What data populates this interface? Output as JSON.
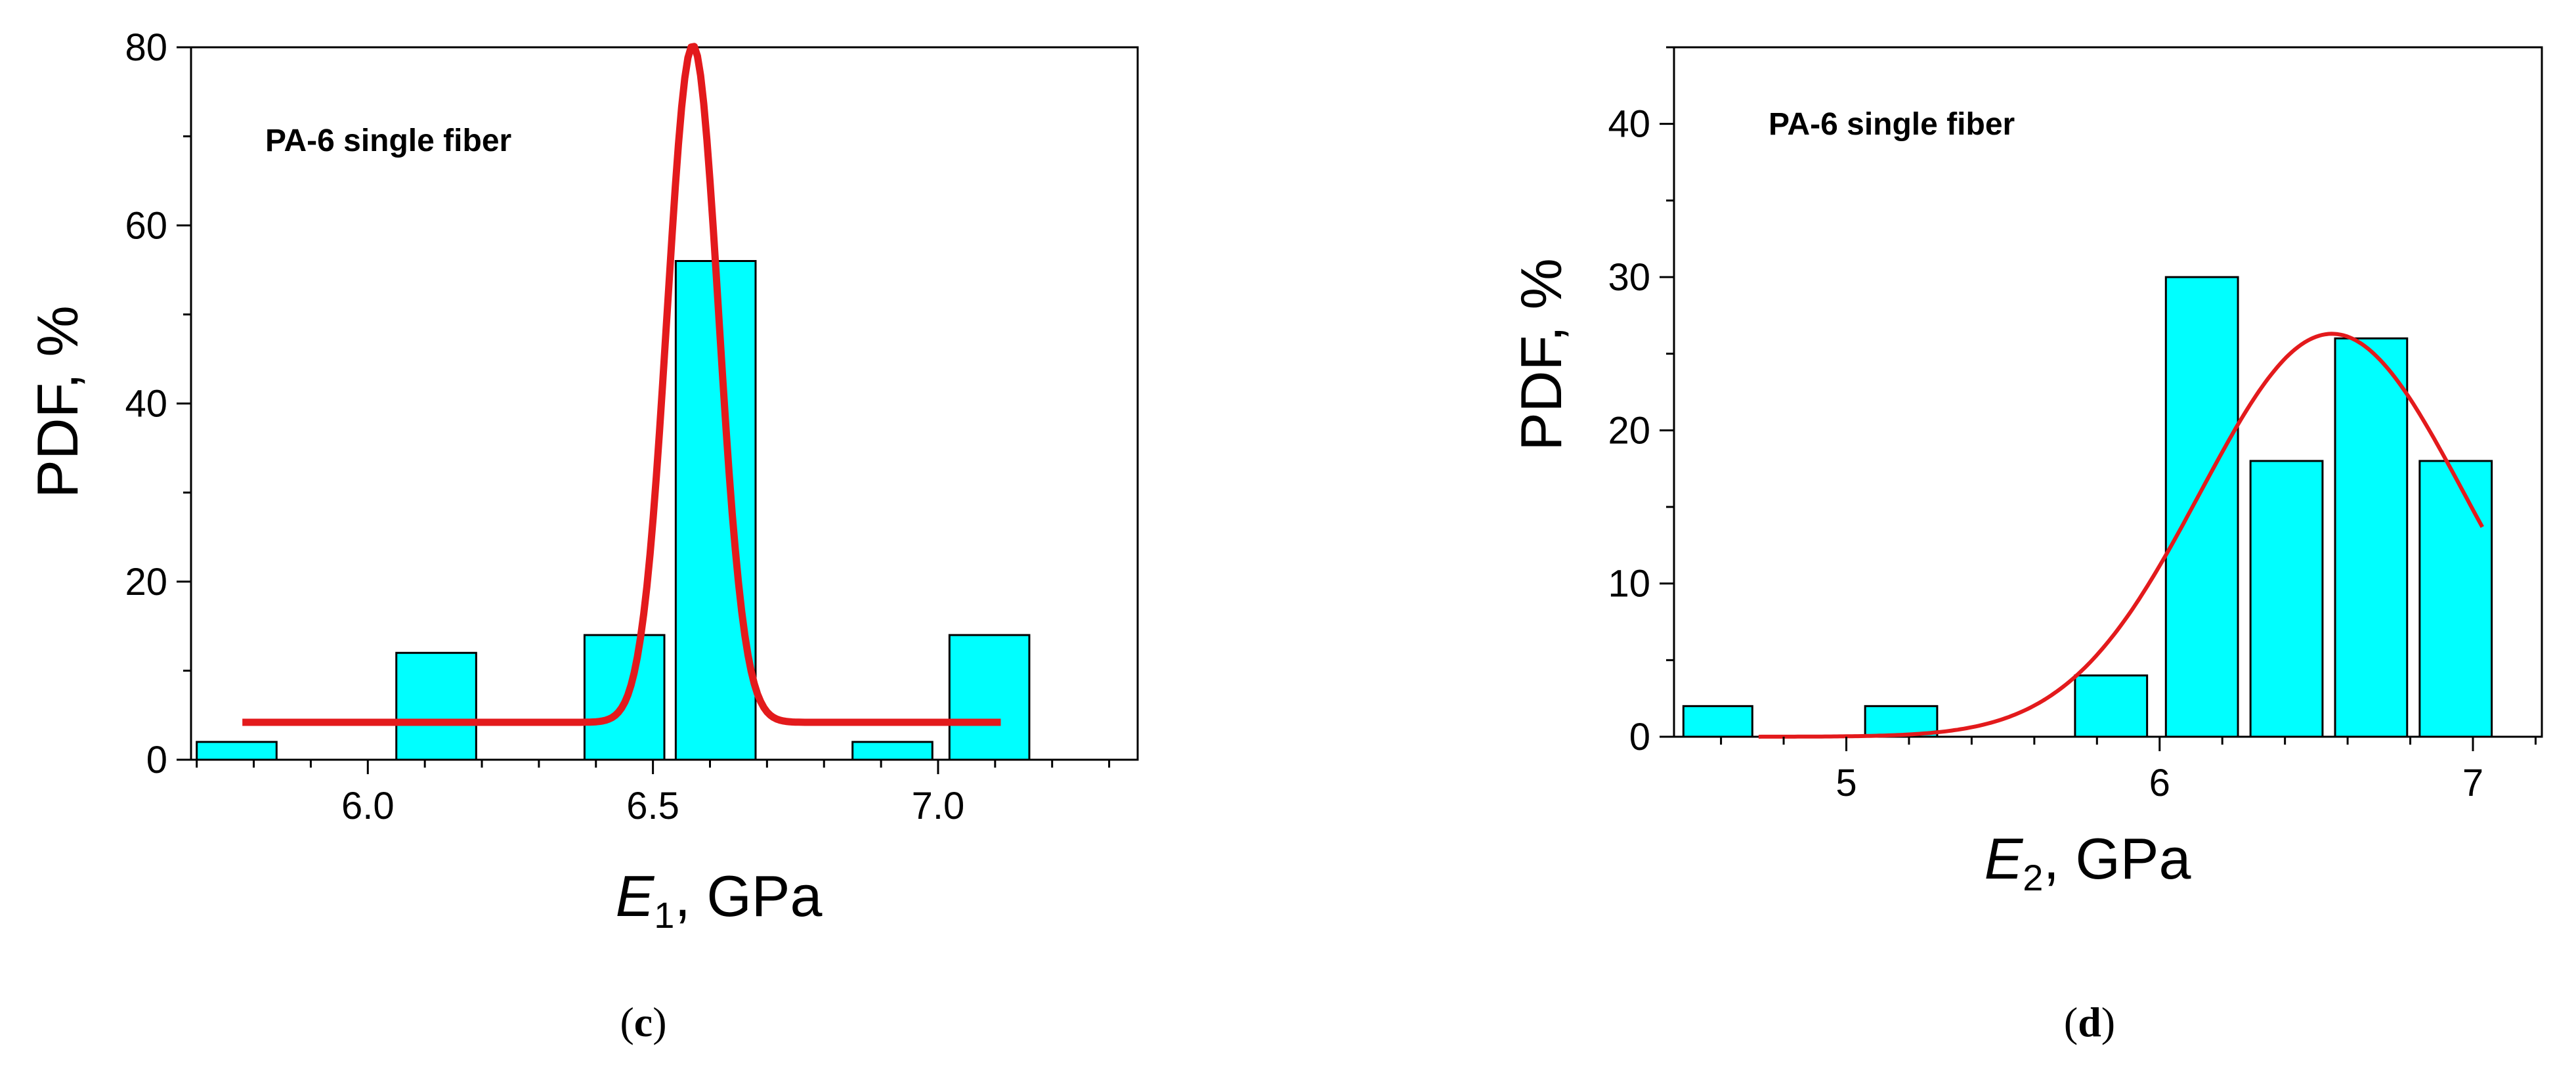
{
  "chart_data": [
    {
      "type": "bar",
      "panel": "c",
      "caption": "c",
      "annotation": "PA-6 single fiber",
      "xlabel": "E",
      "xlabel_sub": "1",
      "xlabel_unit": ", GPa",
      "ylabel": "PDF, %",
      "xlim": [
        5.69,
        7.35
      ],
      "ylim": [
        0,
        80
      ],
      "xticks": [
        6.0,
        6.5,
        7.0
      ],
      "xtick_labels": [
        "6.0",
        "6.5",
        "7.0"
      ],
      "yticks": [
        0,
        20,
        40,
        60,
        80
      ],
      "ytick_labels": [
        "0",
        "20",
        "40",
        "60",
        "80"
      ],
      "bar_color": "#00ffff",
      "bars": [
        {
          "x0": 5.7,
          "x1": 5.84,
          "value": 2
        },
        {
          "x0": 6.05,
          "x1": 6.19,
          "value": 12
        },
        {
          "x0": 6.38,
          "x1": 6.52,
          "value": 14
        },
        {
          "x0": 6.54,
          "x1": 6.68,
          "value": 56
        },
        {
          "x0": 6.85,
          "x1": 6.99,
          "value": 2
        },
        {
          "x0": 7.02,
          "x1": 7.16,
          "value": 14
        }
      ],
      "fit": {
        "name": "Gaussian fit",
        "color": "#e31a1c",
        "type": "gauss",
        "baseline": 4.2,
        "amplitude": 76,
        "center": 6.57,
        "sigma": 0.045,
        "x_range": [
          5.78,
          7.11
        ]
      }
    },
    {
      "type": "bar",
      "panel": "d",
      "caption": "d",
      "annotation": "PA-6 single fiber",
      "xlabel": "E",
      "xlabel_sub": "2",
      "xlabel_unit": ", GPa",
      "ylabel": "PDF, %",
      "xlim": [
        4.45,
        7.22
      ],
      "ylim": [
        0,
        45
      ],
      "xticks": [
        5,
        6,
        7
      ],
      "xtick_labels": [
        "5",
        "6",
        "7"
      ],
      "yticks": [
        0,
        10,
        20,
        30,
        40
      ],
      "ytick_labels": [
        "0",
        "10",
        "20",
        "30",
        "40"
      ],
      "bar_color": "#00ffff",
      "bars": [
        {
          "x0": 4.48,
          "x1": 4.7,
          "value": 2
        },
        {
          "x0": 5.06,
          "x1": 5.29,
          "value": 2
        },
        {
          "x0": 5.73,
          "x1": 5.96,
          "value": 4
        },
        {
          "x0": 6.02,
          "x1": 6.25,
          "value": 30
        },
        {
          "x0": 6.29,
          "x1": 6.52,
          "value": 18
        },
        {
          "x0": 6.56,
          "x1": 6.79,
          "value": 26
        },
        {
          "x0": 6.83,
          "x1": 7.06,
          "value": 18
        }
      ],
      "fit": {
        "name": "Gaussian fit",
        "color": "#e31a1c",
        "type": "gauss",
        "baseline": 0,
        "amplitude": 26.3,
        "center": 6.55,
        "sigma": 0.42,
        "x_range": [
          4.72,
          7.03
        ]
      }
    }
  ]
}
